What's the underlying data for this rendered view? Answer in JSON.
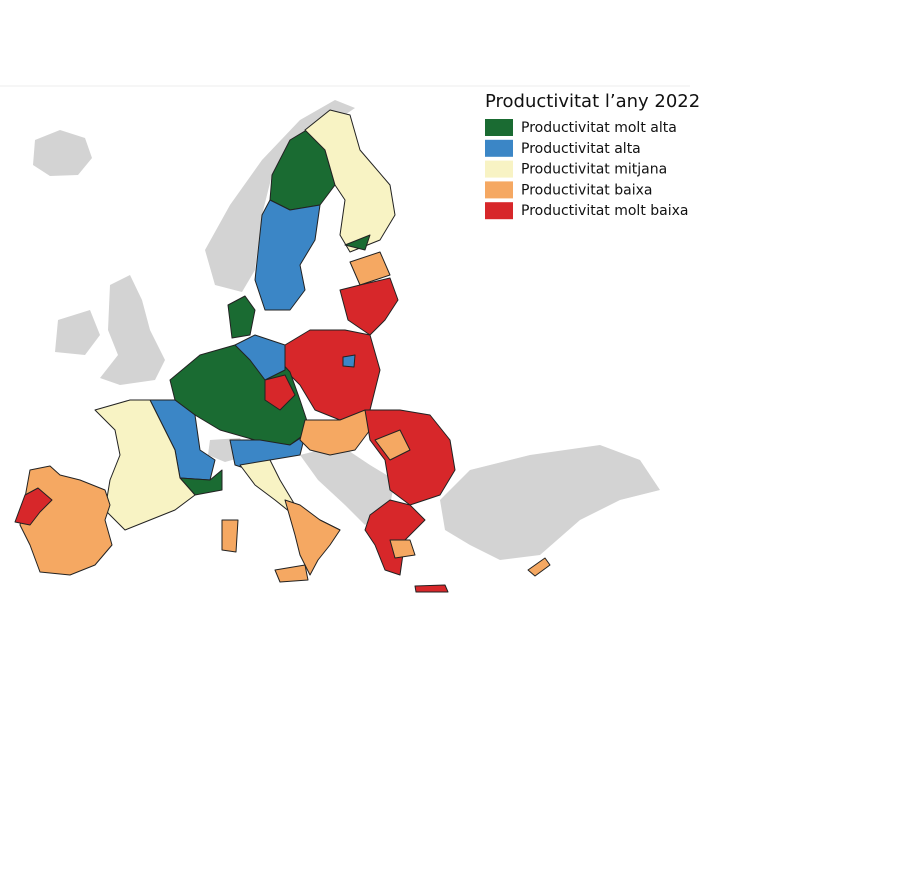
{
  "legend": {
    "title": "Productivitat l’any 2022",
    "items": [
      {
        "label": "Productivitat molt alta",
        "color": "#1a6b32"
      },
      {
        "label": "Productivitat alta",
        "color": "#3b86c6"
      },
      {
        "label": "Productivitat mitjana",
        "color": "#f8f3c4"
      },
      {
        "label": "Productivitat baixa",
        "color": "#f5a862"
      },
      {
        "label": "Productivitat molt baixa",
        "color": "#d7272a"
      }
    ]
  }
}
